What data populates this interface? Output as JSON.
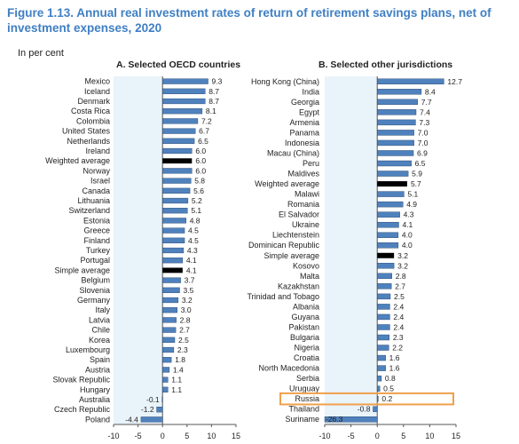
{
  "figure": {
    "title": "Figure 1.13. Annual real investment rates of return of retirement savings plans, net of investment expenses, 2020",
    "units": "In per cent"
  },
  "colors": {
    "bar": "#4f81bd",
    "highlight_bar": "#000000",
    "plot_background": "#e9f3fa",
    "axis": "#555555",
    "highlight_box": "#f0a04b"
  },
  "chart_data": [
    {
      "type": "bar",
      "orientation": "horizontal",
      "title": "A. Selected OECD countries",
      "categories": [
        "Mexico",
        "Iceland",
        "Denmark",
        "Costa Rica",
        "Colombia",
        "United States",
        "Netherlands",
        "Ireland",
        "Weighted average",
        "Norway",
        "Israel",
        "Canada",
        "Lithuania",
        "Switzerland",
        "Estonia",
        "Greece",
        "Finland",
        "Turkey",
        "Portugal",
        "Simple average",
        "Belgium",
        "Slovenia",
        "Germany",
        "Italy",
        "Latvia",
        "Chile",
        "Korea",
        "Luxembourg",
        "Spain",
        "Austria",
        "Slovak Republic",
        "Hungary",
        "Australia",
        "Czech Republic",
        "Poland"
      ],
      "values": [
        9.3,
        8.7,
        8.7,
        8.1,
        7.2,
        6.7,
        6.5,
        6.0,
        6.0,
        6.0,
        5.8,
        5.6,
        5.2,
        5.1,
        4.8,
        4.5,
        4.5,
        4.3,
        4.1,
        4.1,
        3.7,
        3.5,
        3.2,
        3.0,
        2.8,
        2.7,
        2.5,
        2.3,
        1.8,
        1.4,
        1.1,
        1.1,
        -0.1,
        -1.2,
        -4.4
      ],
      "value_labels": [
        "9.3",
        "8.7",
        "8.7",
        "8.1",
        "7.2",
        "6.7",
        "6.5",
        "6.0",
        "6.0",
        "6.0",
        "5.8",
        "5.6",
        "5.2",
        "5.1",
        "4.8",
        "4.5",
        "4.5",
        "4.3",
        "4.1",
        "4.1",
        "3.7",
        "3.5",
        "3.2",
        "3.0",
        "2.8",
        "2.7",
        "2.5",
        "2.3",
        "1.8",
        "1.4",
        "1.1",
        "1.1",
        "-0.1",
        "-1.2",
        "-4.4"
      ],
      "highlighted": [
        "Weighted average",
        "Simple average"
      ],
      "xlim": [
        -10,
        15
      ],
      "xticks": [
        "-10",
        "-5",
        "0",
        "5",
        "10",
        "15"
      ]
    },
    {
      "type": "bar",
      "orientation": "horizontal",
      "title": "B. Selected other jurisdictions",
      "categories": [
        "Hong Kong (China)",
        "India",
        "Georgia",
        "Egypt",
        "Armenia",
        "Panama",
        "Indonesia",
        "Macau (China)",
        "Peru",
        "Maldives",
        "Weighted average",
        "Malawi",
        "Romania",
        "El Salvador",
        "Ukraine",
        "Liechtenstein",
        "Dominican Republic",
        "Simple average",
        "Kosovo",
        "Malta",
        "Kazakhstan",
        "Trinidad and Tobago",
        "Albania",
        "Guyana",
        "Pakistan",
        "Bulgaria",
        "Nigeria",
        "Croatia",
        "North Macedonia",
        "Serbia",
        "Uruguay",
        "Russia",
        "Thailand",
        "Suriname"
      ],
      "values": [
        12.7,
        8.4,
        7.7,
        7.4,
        7.3,
        7.0,
        7.0,
        6.9,
        6.5,
        5.9,
        5.7,
        5.1,
        4.9,
        4.3,
        4.1,
        4.0,
        4.0,
        3.2,
        3.2,
        2.8,
        2.7,
        2.5,
        2.4,
        2.4,
        2.4,
        2.3,
        2.2,
        1.6,
        1.6,
        0.8,
        0.5,
        0.2,
        -0.8,
        -26.3
      ],
      "value_labels": [
        "12.7",
        "8.4",
        "7.7",
        "7.4",
        "7.3",
        "7.0",
        "7.0",
        "6.9",
        "6.5",
        "5.9",
        "5.7",
        "5.1",
        "4.9",
        "4.3",
        "4.1",
        "4.0",
        "4.0",
        "3.2",
        "3.2",
        "2.8",
        "2.7",
        "2.5",
        "2.4",
        "2.4",
        "2.4",
        "2.3",
        "2.2",
        "1.6",
        "1.6",
        "0.8",
        "0.5",
        "0.2",
        "-0.8",
        "-26.3"
      ],
      "highlighted": [
        "Weighted average",
        "Simple average"
      ],
      "boxed": [
        "Russia"
      ],
      "xlim": [
        -10,
        15
      ],
      "xticks": [
        "-10",
        "-5",
        "0",
        "5",
        "10",
        "15"
      ]
    }
  ]
}
